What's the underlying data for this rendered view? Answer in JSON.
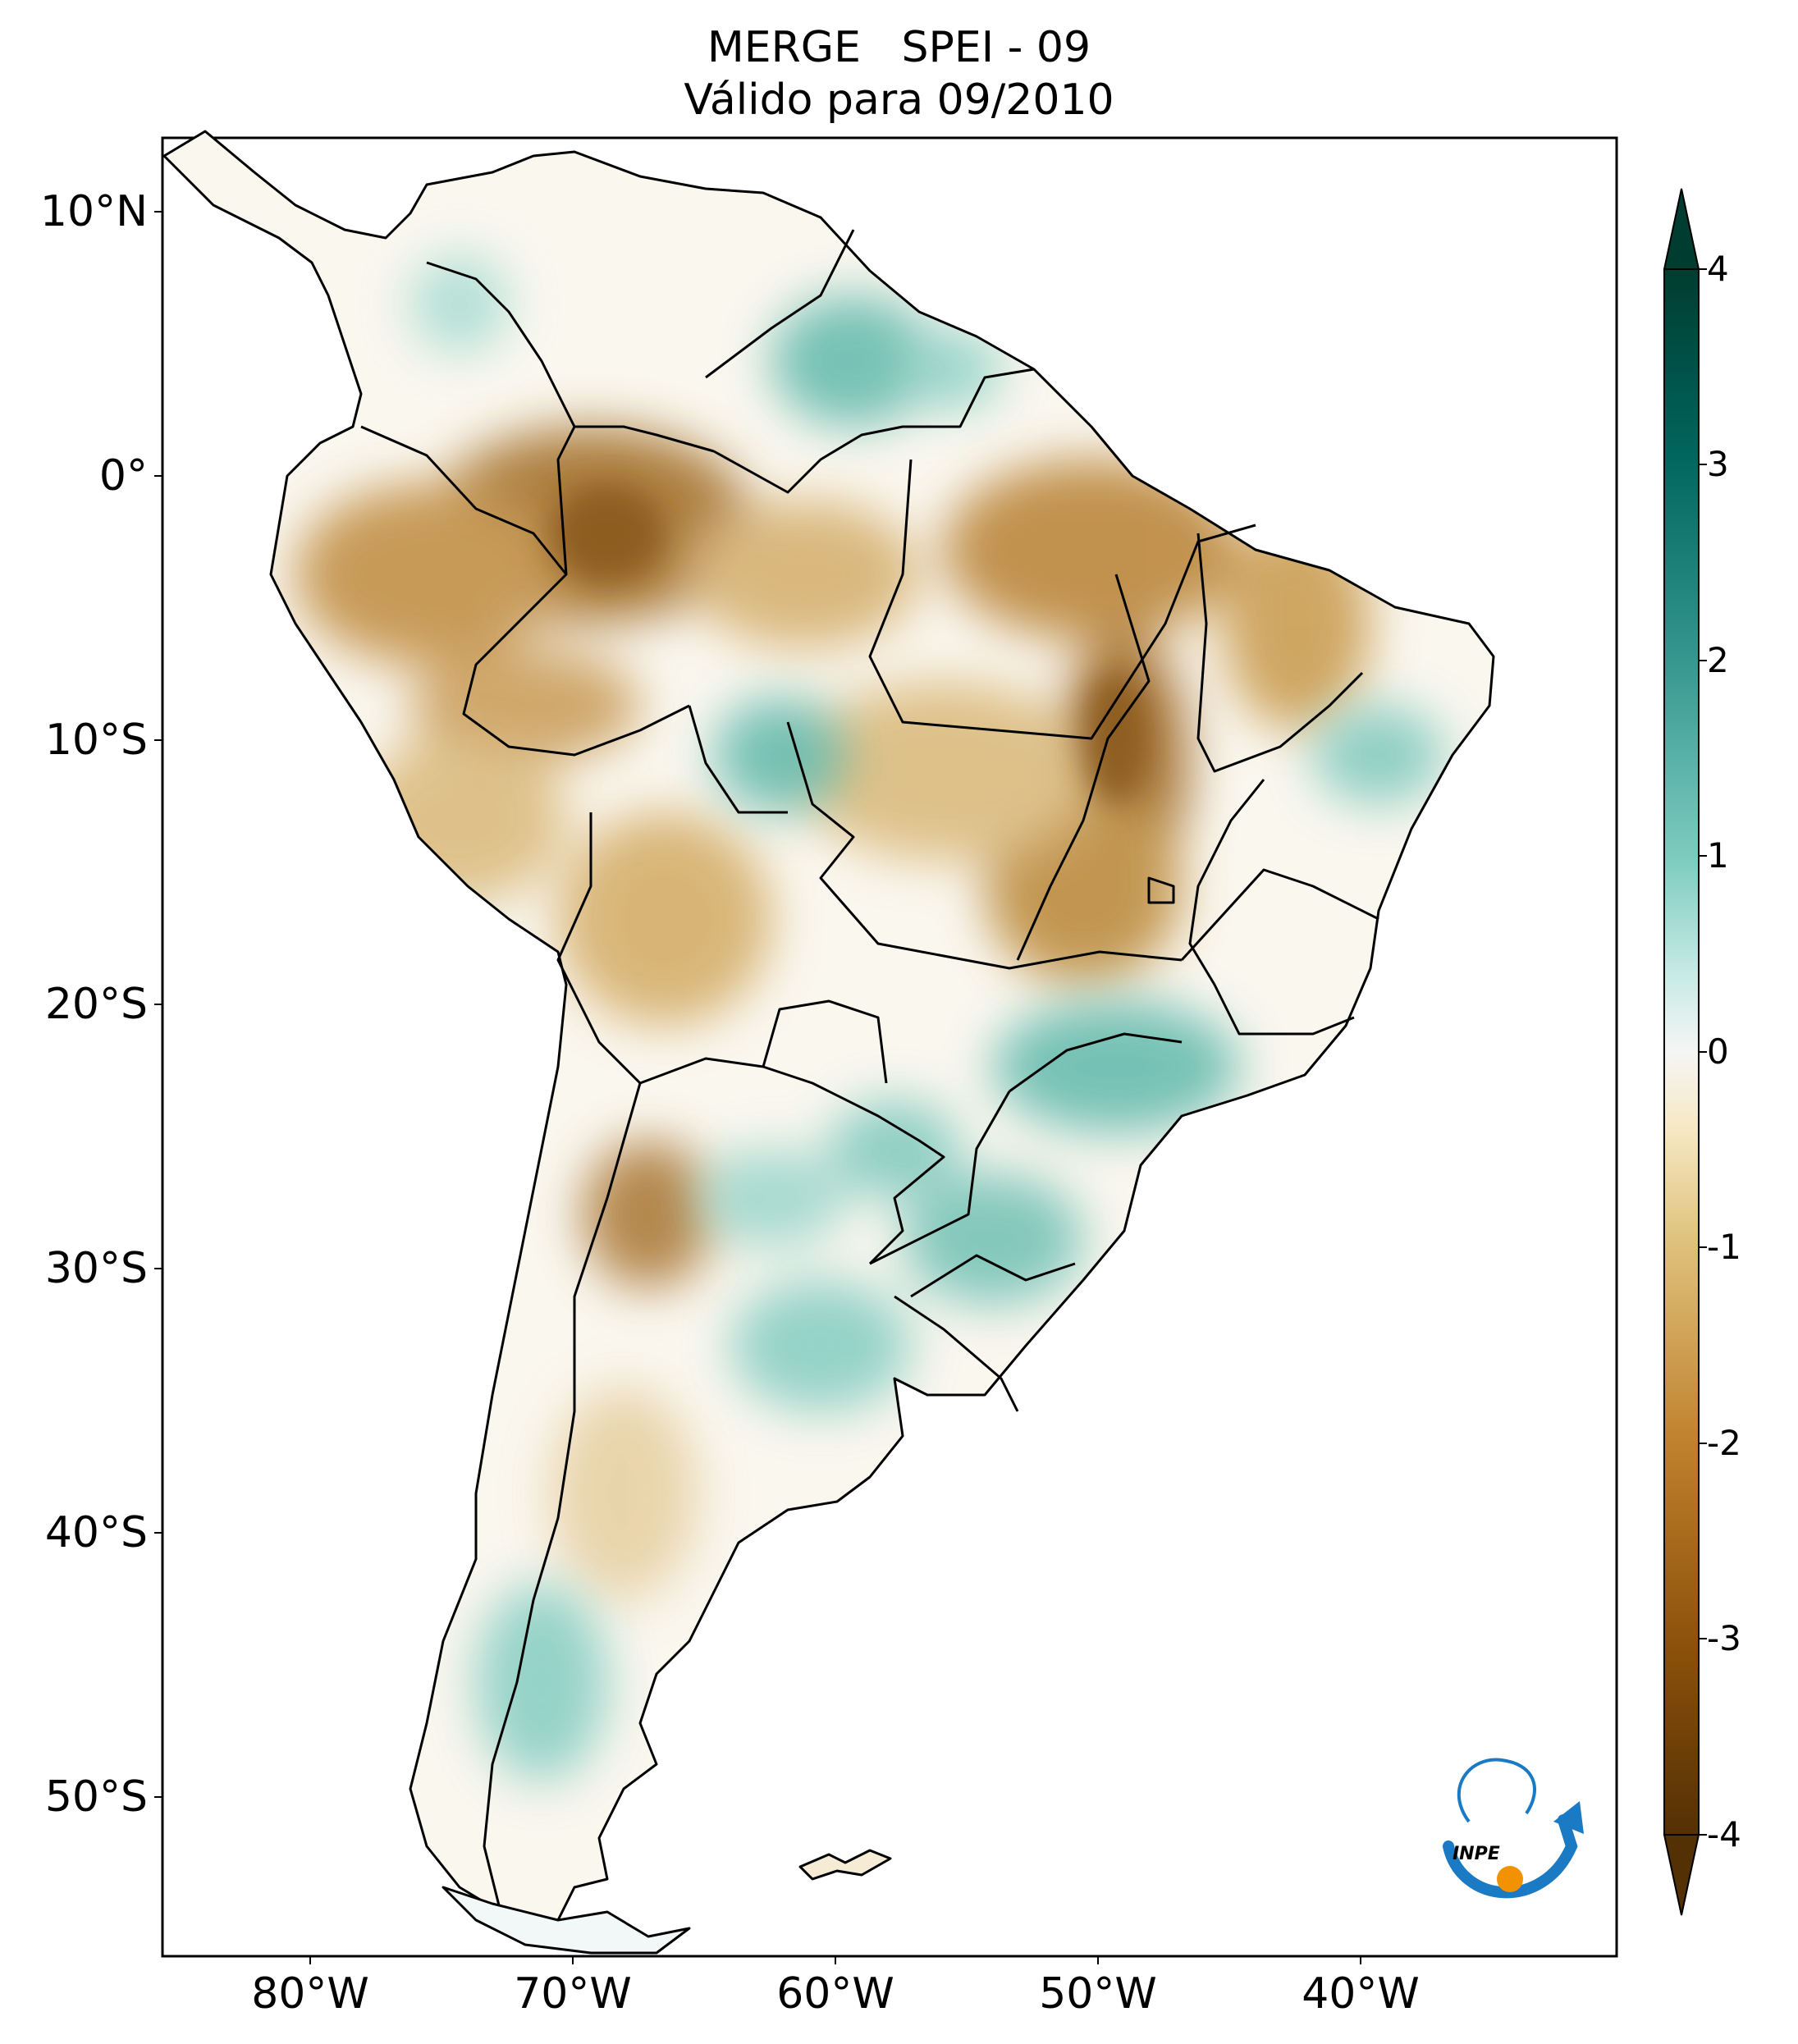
{
  "title": {
    "line1": "MERGE   SPEI - 09",
    "line2": "Válido para 09/2010"
  },
  "latitude_labels": [
    "10°N",
    "0°",
    "10°S",
    "20°S",
    "30°S",
    "40°S",
    "50°S"
  ],
  "longitude_labels": [
    "80°W",
    "70°W",
    "60°W",
    "50°W",
    "40°W"
  ],
  "colorbar": {
    "ticks": [
      "4",
      "3",
      "2",
      "1",
      "0",
      "-1",
      "-2",
      "-3",
      "-4"
    ],
    "min": -4,
    "max": 4,
    "extend": "both",
    "colormap": "BrBG"
  },
  "logo": {
    "text": "INPE",
    "arrow_color": "#1a7ac4",
    "dot_color": "#f39200"
  },
  "colors": {
    "dry_extreme": "#543005",
    "dry": "#bf812d",
    "neutral": "#f5f5f5",
    "wet": "#80cdc1",
    "wet_extreme": "#003c30"
  }
}
